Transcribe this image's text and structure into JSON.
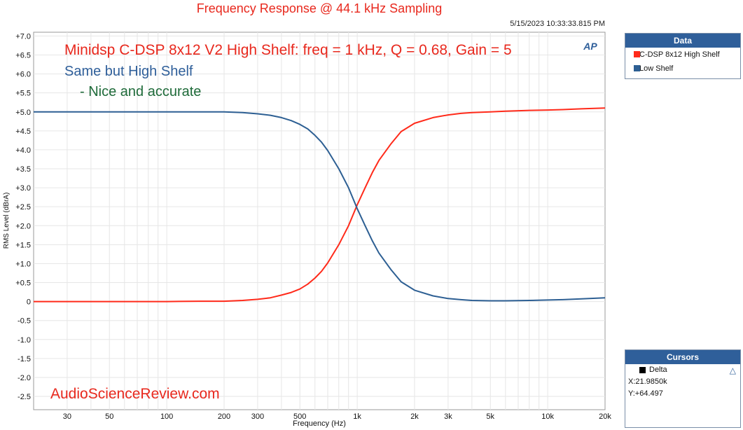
{
  "header": {
    "title": "Frequency Response @ 44.1 kHz Sampling",
    "timestamp": "5/15/2023 10:33:33.815 PM"
  },
  "annotations": {
    "line1": "Minidsp C-DSP 8x12 V2 High Shelf: freq = 1 kHz, Q = 0.68, Gain = 5",
    "line2": "Same but High Shelf",
    "line3": "- Nice and accurate",
    "watermark": "AudioScienceReview.com",
    "logo": "AP"
  },
  "colors": {
    "series1": "#ff2a1a",
    "series2": "#2d5f93",
    "line1": "#e8281d",
    "line2": "#2f5f9a",
    "line3": "#1f6b3a",
    "watermark": "#e8281d",
    "panel_header": "#2f5f9a"
  },
  "legend_panel": {
    "title": "Data",
    "items": [
      {
        "label": "C-DSP 8x12 High Shelf",
        "color": "#ff2a1a"
      },
      {
        "label": "Low Shelf",
        "color": "#2d5f93"
      }
    ]
  },
  "cursors_panel": {
    "title": "Cursors",
    "item": "Delta",
    "x": "X:21.9850k",
    "y": "Y:+64.497"
  },
  "chart_data": {
    "type": "line",
    "xlabel": "Frequency (Hz)",
    "ylabel": "RMS Level (dBrA)",
    "xscale": "log",
    "xlim": [
      20,
      20000
    ],
    "ylim": [
      -2.85,
      7.1
    ],
    "grid": true,
    "x_ticks": [
      {
        "v": 30,
        "label": "30"
      },
      {
        "v": 50,
        "label": "50"
      },
      {
        "v": 100,
        "label": "100"
      },
      {
        "v": 200,
        "label": "200"
      },
      {
        "v": 300,
        "label": "300"
      },
      {
        "v": 500,
        "label": "500"
      },
      {
        "v": 1000,
        "label": "1k"
      },
      {
        "v": 2000,
        "label": "2k"
      },
      {
        "v": 3000,
        "label": "3k"
      },
      {
        "v": 5000,
        "label": "5k"
      },
      {
        "v": 10000,
        "label": "10k"
      },
      {
        "v": 20000,
        "label": "20k"
      }
    ],
    "y_ticks": [
      {
        "v": 7,
        "label": "+7.0"
      },
      {
        "v": 6.5,
        "label": "+6.5"
      },
      {
        "v": 6,
        "label": "+6.0"
      },
      {
        "v": 5.5,
        "label": "+5.5"
      },
      {
        "v": 5,
        "label": "+5.0"
      },
      {
        "v": 4.5,
        "label": "+4.5"
      },
      {
        "v": 4,
        "label": "+4.0"
      },
      {
        "v": 3.5,
        "label": "+3.5"
      },
      {
        "v": 3,
        "label": "+3.0"
      },
      {
        "v": 2.5,
        "label": "+2.5"
      },
      {
        "v": 2,
        "label": "+2.0"
      },
      {
        "v": 1.5,
        "label": "+1.5"
      },
      {
        "v": 1,
        "label": "+1.0"
      },
      {
        "v": 0.5,
        "label": "+0.5"
      },
      {
        "v": 0,
        "label": "0"
      },
      {
        "v": -0.5,
        "label": "-0.5"
      },
      {
        "v": -1,
        "label": "-1.0"
      },
      {
        "v": -1.5,
        "label": "-1.5"
      },
      {
        "v": -2,
        "label": "-2.0"
      },
      {
        "v": -2.5,
        "label": "-2.5"
      }
    ],
    "series": [
      {
        "name": "C-DSP 8x12 High Shelf",
        "color": "#ff2a1a",
        "x": [
          20,
          50,
          100,
          150,
          200,
          250,
          300,
          350,
          400,
          450,
          500,
          550,
          600,
          650,
          700,
          800,
          900,
          1000,
          1100,
          1200,
          1300,
          1500,
          1700,
          2000,
          2500,
          3000,
          3500,
          4000,
          5000,
          6000,
          8000,
          10000,
          12000,
          15000,
          20000
        ],
        "y": [
          0,
          0,
          0,
          0.01,
          0.01,
          0.03,
          0.06,
          0.1,
          0.17,
          0.24,
          0.33,
          0.46,
          0.62,
          0.8,
          1.02,
          1.5,
          2.0,
          2.55,
          3.0,
          3.4,
          3.72,
          4.15,
          4.48,
          4.7,
          4.85,
          4.92,
          4.96,
          4.98,
          5.0,
          5.02,
          5.04,
          5.05,
          5.06,
          5.08,
          5.1
        ]
      },
      {
        "name": "Low Shelf",
        "color": "#2d5f93",
        "x": [
          20,
          50,
          100,
          150,
          200,
          250,
          300,
          350,
          400,
          450,
          500,
          550,
          600,
          650,
          700,
          800,
          900,
          1000,
          1100,
          1200,
          1300,
          1500,
          1700,
          2000,
          2500,
          3000,
          3500,
          4000,
          5000,
          6000,
          8000,
          10000,
          12000,
          15000,
          20000
        ],
        "y": [
          5.0,
          5.0,
          5.0,
          5.0,
          5.0,
          4.98,
          4.95,
          4.91,
          4.85,
          4.77,
          4.67,
          4.55,
          4.38,
          4.2,
          3.98,
          3.5,
          3.0,
          2.45,
          2.0,
          1.6,
          1.28,
          0.85,
          0.52,
          0.3,
          0.15,
          0.08,
          0.05,
          0.03,
          0.02,
          0.02,
          0.03,
          0.04,
          0.05,
          0.07,
          0.1
        ]
      }
    ]
  }
}
